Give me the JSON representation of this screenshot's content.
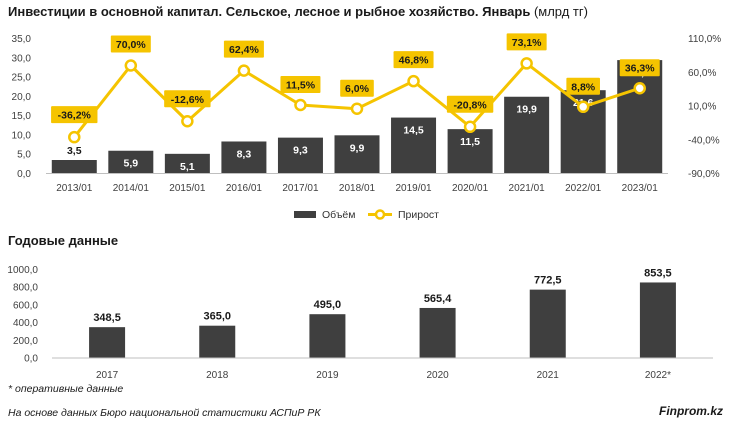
{
  "title": "Инвестиции в основной капитал. Сельское, лесное и рыбное хозяйство. Январь",
  "unit": "(млрд тг)",
  "subtitle": "Годовые данные",
  "note": "* оперативные данные",
  "source": "На основе данных Бюро национальной статистики АСПиР РК",
  "brand": "Finprom.kz",
  "colors": {
    "bar": "#3f3f3f",
    "line": "#f5c400",
    "grid": "#d9d9d9",
    "axis_text": "#404040"
  },
  "chart_data": [
    {
      "type": "bar+line",
      "categories": [
        "2013/01",
        "2014/01",
        "2015/01",
        "2016/01",
        "2017/01",
        "2018/01",
        "2019/01",
        "2020/01",
        "2021/01",
        "2022/01",
        "2023/01"
      ],
      "series": [
        {
          "name": "Объём",
          "type": "bar",
          "axis": "left",
          "values": [
            3.5,
            5.9,
            5.1,
            8.3,
            9.3,
            9.9,
            14.5,
            11.5,
            19.9,
            21.6,
            29.4
          ],
          "labels": [
            "3,5",
            "5,9",
            "5,1",
            "8,3",
            "9,3",
            "9,9",
            "14,5",
            "11,5",
            "19,9",
            "21,6",
            "29,4"
          ]
        },
        {
          "name": "Прирост",
          "type": "line",
          "axis": "right",
          "values": [
            -36.2,
            70.0,
            -12.6,
            62.4,
            11.5,
            6.0,
            46.8,
            -20.8,
            73.1,
            8.8,
            36.3
          ],
          "labels": [
            "-36,2%",
            "70,0%",
            "-12,6%",
            "62,4%",
            "11,5%",
            "6,0%",
            "46,8%",
            "-20,8%",
            "73,1%",
            "8,8%",
            "36,3%"
          ]
        }
      ],
      "y_left": {
        "min": 0,
        "max": 35,
        "ticks": [
          "0,0",
          "5,0",
          "10,0",
          "15,0",
          "20,0",
          "25,0",
          "30,0",
          "35,0"
        ]
      },
      "y_right": {
        "min": -90,
        "max": 110,
        "ticks": [
          "-90,0%",
          "-40,0%",
          "10,0%",
          "60,0%",
          "110,0%"
        ]
      },
      "grid": false,
      "legend": "bottom"
    },
    {
      "type": "bar",
      "categories": [
        "2017",
        "2018",
        "2019",
        "2020",
        "2021",
        "2022*"
      ],
      "values": [
        348.5,
        365.0,
        495.0,
        565.4,
        772.5,
        853.5
      ],
      "labels": [
        "348,5",
        "365,0",
        "495,0",
        "565,4",
        "772,5",
        "853,5"
      ],
      "ylim": [
        0,
        1000
      ],
      "yticks": [
        "0,0",
        "200,0",
        "400,0",
        "600,0",
        "800,0",
        "1000,0"
      ],
      "grid": false
    }
  ]
}
